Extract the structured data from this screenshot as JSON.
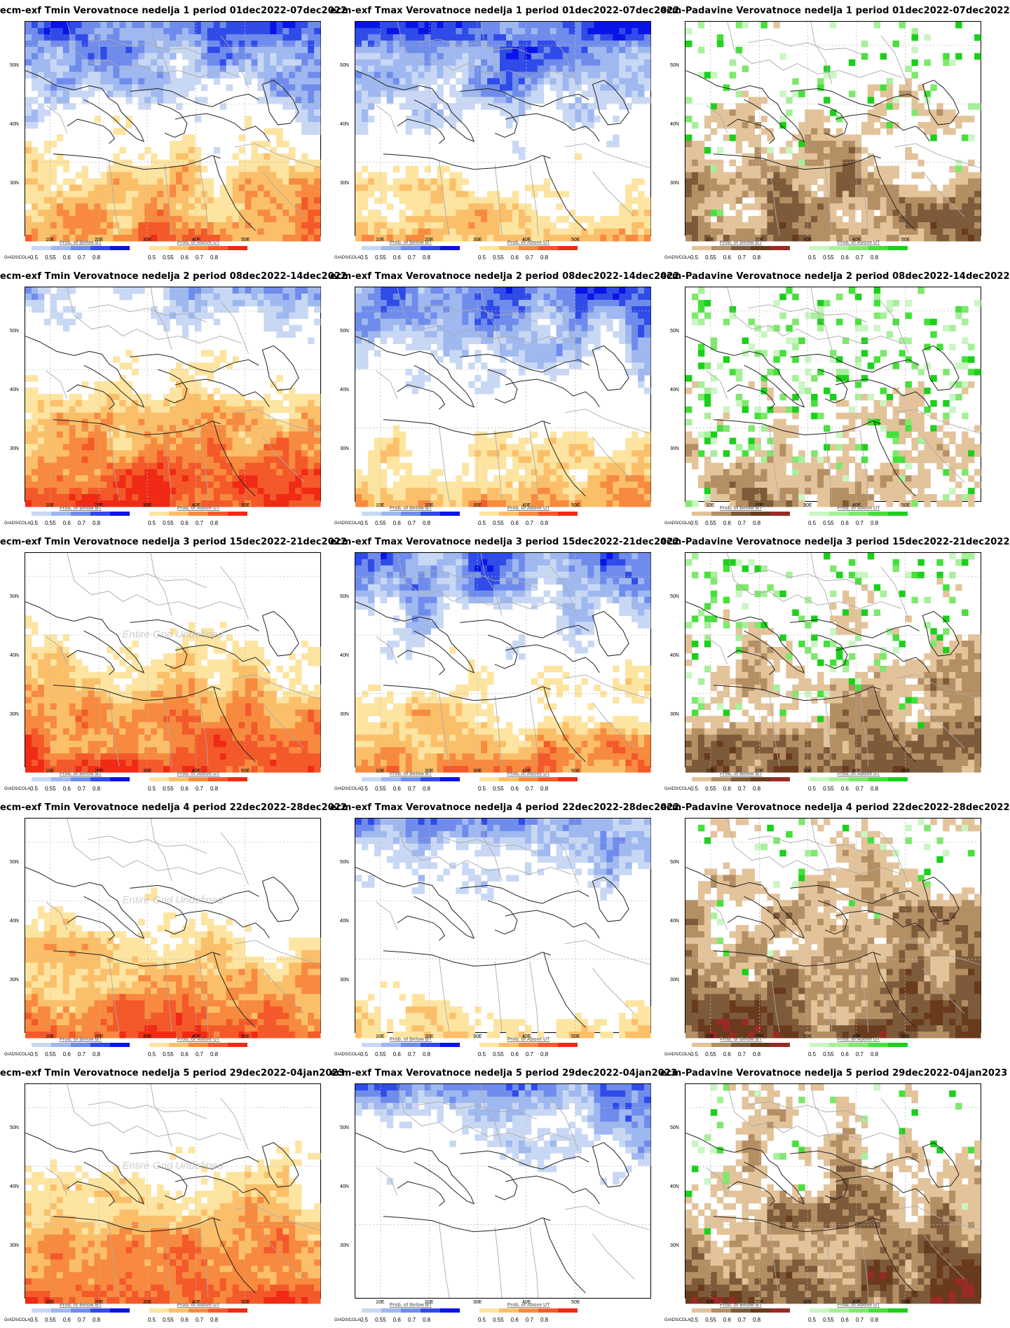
{
  "colors": {
    "below_bt": [
      "#c8d8f4",
      "#9fb8f0",
      "#6f8cec",
      "#2f4be8",
      "#0a14e6"
    ],
    "above_ut": [
      "#fde4a0",
      "#fbbf6a",
      "#f78a3e",
      "#f4592a",
      "#f02a14"
    ],
    "prcp_below": [
      "#e3c39a",
      "#b58f64",
      "#7d5a3a",
      "#6a3a1c",
      "#9a2a26"
    ],
    "prcp_above": [
      "#c9f6c2",
      "#a6f09a",
      "#7ee86c",
      "#44e03a",
      "#1ad01a"
    ],
    "coast": "#222222",
    "border": "#aaaaaa"
  },
  "axes": {
    "lat_labels": [
      "50N",
      "40N",
      "30N"
    ],
    "lon_labels": [
      "10E",
      "20E",
      "30E",
      "40E",
      "50E"
    ]
  },
  "legend": {
    "grads": "GrADS/COLA",
    "below_title": "Prob. of Below BT",
    "above_title": "Prob. of Above UT",
    "ticks_a": [
      "0.5",
      "0.55",
      "0.6",
      "0.7",
      "0.8"
    ],
    "ticks_b": [
      "0.5",
      "0.55",
      "0.6",
      "0.7",
      "0.8"
    ]
  },
  "undefined_text": "Entire Grid Undefined",
  "panels": [
    {
      "title": "ecm-exf Tmin Verovatnoce nedelja 1 period 01dec2022-07dec2022",
      "var": "tmin",
      "week": 1,
      "undef": false,
      "levels": {
        "below": 0.55,
        "above": 0.55
      }
    },
    {
      "title": "ecm-exf Tmax Verovatnoce nedelja 1 period 01dec2022-07dec2022",
      "var": "tmax",
      "week": 1,
      "undef": false,
      "levels": {
        "below": 0.6,
        "above": 0.3
      }
    },
    {
      "title": "ecm-Padavine Verovatnoce nedelja 1 period 01dec2022-07dec2022",
      "var": "prcp",
      "week": 1,
      "undef": false,
      "levels": {
        "below": 0.7,
        "above": 0.1
      }
    },
    {
      "title": "ecm-exf Tmin Verovatnoce nedelja 2 period 08dec2022-14dec2022",
      "var": "tmin",
      "week": 2,
      "undef": false,
      "levels": {
        "below": 0.1,
        "above": 0.8
      }
    },
    {
      "title": "ecm-exf Tmax Verovatnoce nedelja 2 period 08dec2022-14dec2022",
      "var": "tmax",
      "week": 2,
      "undef": false,
      "levels": {
        "below": 0.45,
        "above": 0.4
      }
    },
    {
      "title": "ecm-Padavine Verovatnoce nedelja 2 period 08dec2022-14dec2022",
      "var": "prcp",
      "week": 2,
      "undef": false,
      "levels": {
        "below": 0.45,
        "above": 0.2
      }
    },
    {
      "title": "ecm-exf Tmin Verovatnoce nedelja 3 period 15dec2022-21dec2022",
      "var": "tmin",
      "week": 3,
      "undef": true,
      "levels": {
        "below": 0.0,
        "above": 0.8
      }
    },
    {
      "title": "ecm-exf Tmax Verovatnoce nedelja 3 period 15dec2022-21dec2022",
      "var": "tmax",
      "week": 3,
      "undef": false,
      "levels": {
        "below": 0.45,
        "above": 0.5
      }
    },
    {
      "title": "ecm-Padavine Verovatnoce nedelja 3 period 15dec2022-21dec2022",
      "var": "prcp",
      "week": 3,
      "undef": false,
      "levels": {
        "below": 0.7,
        "above": 0.15
      }
    },
    {
      "title": "ecm-exf Tmin Verovatnoce nedelja 4 period 22dec2022-28dec2022",
      "var": "tmin",
      "week": 4,
      "undef": true,
      "levels": {
        "below": 0.0,
        "above": 0.75
      }
    },
    {
      "title": "ecm-exf Tmax Verovatnoce nedelja 4 period 22dec2022-28dec2022",
      "var": "tmax",
      "week": 4,
      "undef": false,
      "levels": {
        "below": 0.35,
        "above": 0.15
      }
    },
    {
      "title": "ecm-Padavine Verovatnoce nedelja 4 period 22dec2022-28dec2022",
      "var": "prcp",
      "week": 4,
      "undef": false,
      "levels": {
        "below": 0.9,
        "above": 0.08
      }
    },
    {
      "title": "ecm-exf Tmin Verovatnoce nedelja 5 period 29dec2022-04jan2023",
      "var": "tmin",
      "week": 5,
      "undef": true,
      "levels": {
        "below": 0.0,
        "above": 0.85
      }
    },
    {
      "title": "ecm-exf Tmax Verovatnoce nedelja 5 period 29dec2022-04jan2023",
      "var": "tmax",
      "week": 5,
      "undef": false,
      "levels": {
        "below": 0.4,
        "above": 0.0
      }
    },
    {
      "title": "ecm-Padavine Verovatnoce nedelja 5 period 29dec2022-04jan2023",
      "var": "prcp",
      "week": 5,
      "undef": false,
      "levels": {
        "below": 0.9,
        "above": 0.06
      }
    }
  ]
}
